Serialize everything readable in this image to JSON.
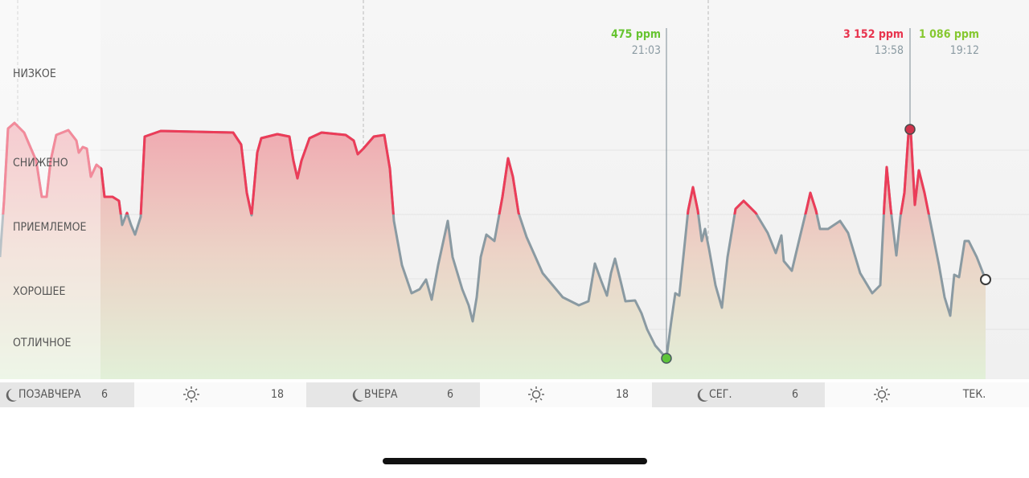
{
  "y_levels": [
    "НИЗКОЕ",
    "СНИЖЕНО",
    "ПРИЕМЛЕМОЕ",
    "ХОРОШЕЕ",
    "ОТЛИЧНОЕ"
  ],
  "markers": [
    {
      "value": "475 ppm",
      "time": "21:03"
    },
    {
      "value": "3 152 ppm",
      "time": "13:58"
    },
    {
      "value": "1 086 ppm",
      "time": "19:12"
    }
  ],
  "timeline": [
    "ПОЗАВЧЕРА",
    "6",
    "18",
    "ВЧЕРА",
    "6",
    "18",
    "СЕГ.",
    "6",
    "ТЕК."
  ]
}
